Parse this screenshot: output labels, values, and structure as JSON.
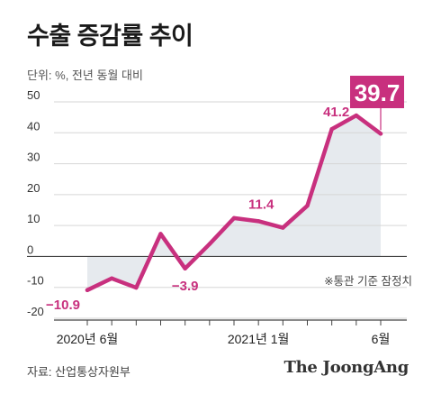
{
  "title": "수출 증감률 추이",
  "unit_note": "단위: %, 전년 동월 대비",
  "footnote": "※통관 기준 잠정치",
  "source": "자료: 산업통상자원부",
  "brand": "The JoongAng",
  "colors": {
    "line": "#c8307e",
    "area": "#e6eaee",
    "grid": "#d6d6d6",
    "axis": "#444444"
  },
  "chart_data": {
    "type": "line",
    "ylim": [
      -20,
      50
    ],
    "yticks": [
      -20,
      -10,
      0,
      10,
      20,
      30,
      40,
      50
    ],
    "x": [
      "2020-06",
      "2020-07",
      "2020-08",
      "2020-09",
      "2020-10",
      "2020-11",
      "2020-12",
      "2021-01",
      "2021-02",
      "2021-03",
      "2021-04",
      "2021-05",
      "2021-06"
    ],
    "values": [
      -10.9,
      -7.1,
      -10.1,
      7.3,
      -3.9,
      4.0,
      12.4,
      11.4,
      9.3,
      16.4,
      41.2,
      45.6,
      39.7
    ],
    "xtick_labels": [
      {
        "index": 0,
        "text": "2020년 6월"
      },
      {
        "index": 7,
        "text": "2021년 1월"
      },
      {
        "index": 12,
        "text": "6월"
      }
    ],
    "data_labels": [
      {
        "index": 0,
        "text": "−10.9"
      },
      {
        "index": 4,
        "text": "−3.9"
      },
      {
        "index": 7,
        "text": "11.4"
      },
      {
        "index": 10,
        "text": "41.2"
      }
    ],
    "callout": {
      "index": 12,
      "text": "39.7"
    },
    "grid": true,
    "area_fill": true
  }
}
